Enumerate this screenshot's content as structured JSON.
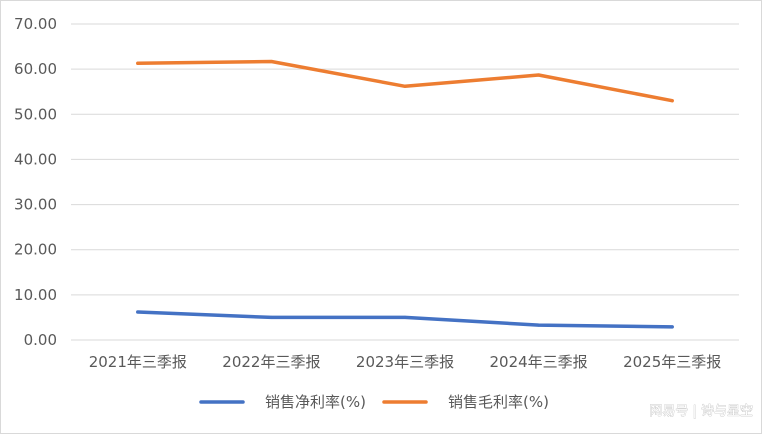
{
  "chart_data": {
    "type": "line",
    "categories": [
      "2021年三季报",
      "2022年三季报",
      "2023年三季报",
      "2024年三季报",
      "2025年三季报"
    ],
    "series": [
      {
        "name": "销售净利率(%)",
        "color": "#4472c4",
        "values": [
          6.2,
          5.0,
          5.0,
          3.3,
          2.9
        ]
      },
      {
        "name": "销售毛利率(%)",
        "color": "#ed7d31",
        "values": [
          61.3,
          61.7,
          56.2,
          58.7,
          53.0
        ]
      }
    ],
    "y_ticks": [
      "0.00",
      "10.00",
      "20.00",
      "30.00",
      "40.00",
      "50.00",
      "60.00",
      "70.00"
    ],
    "ylim": [
      0,
      70
    ],
    "grid": true,
    "legend_position": "bottom"
  },
  "watermark": "网易号 | 诗与星空"
}
